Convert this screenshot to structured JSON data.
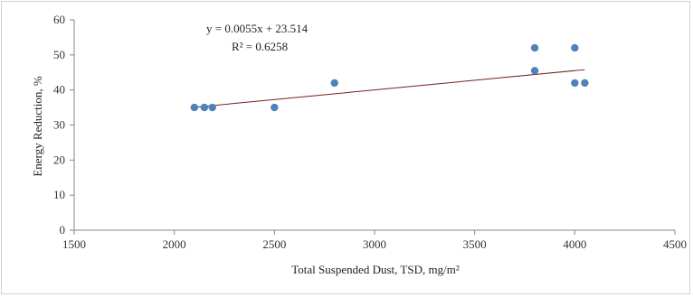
{
  "chart_data": {
    "type": "scatter",
    "title": "",
    "xlabel": "Total Suspended Dust, TSD,  mg/m²",
    "ylabel": "Energy Reduction, %",
    "xlim": [
      1500,
      4500
    ],
    "ylim": [
      0,
      60
    ],
    "xticks": [
      "1500",
      "2000",
      "2500",
      "3000",
      "3500",
      "4000",
      "4500"
    ],
    "yticks": [
      "0",
      "10",
      "20",
      "30",
      "40",
      "50",
      "60"
    ],
    "grid": false,
    "legend": "none",
    "series": [
      {
        "x": [
          2100,
          2150,
          2190,
          2500,
          2800,
          3800,
          3800,
          4000,
          4000,
          4050
        ],
        "y": [
          35,
          35,
          35,
          35,
          42,
          52,
          45.5,
          52,
          42,
          42
        ],
        "color": "#4f81bd"
      }
    ],
    "trendline": {
      "type": "linear",
      "slope": 0.0055,
      "intercept": 23.514,
      "x_range": [
        2100,
        4050
      ],
      "color": "#7a1f1f",
      "equation": "y = 0.0055x   + 23.514",
      "r_squared": "R² = 0.6258"
    }
  }
}
